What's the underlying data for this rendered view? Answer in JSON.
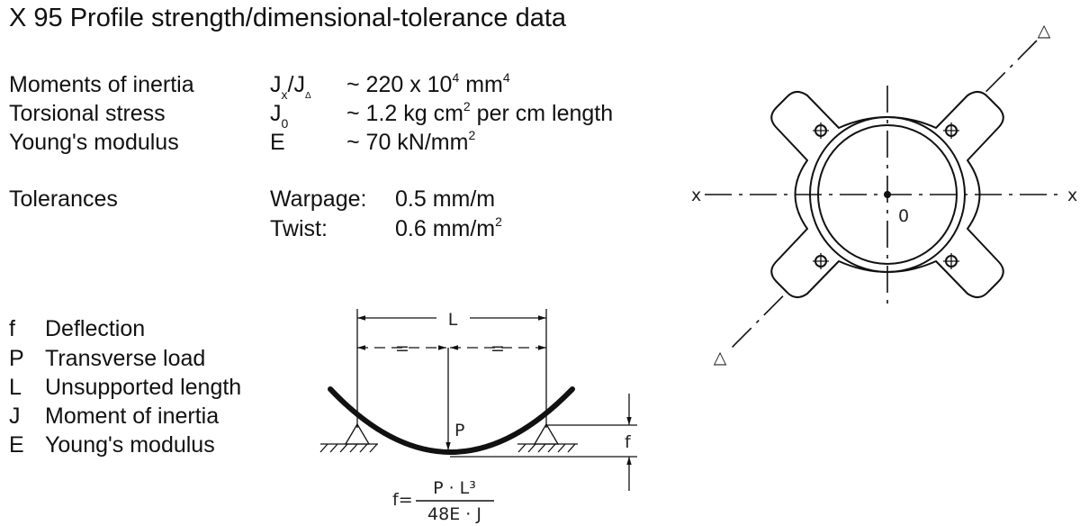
{
  "title": "X 95 Profile strength/dimensional-tolerance data",
  "properties": [
    {
      "label": "Moments of inertia",
      "symbol_main": "J",
      "symbol_sub": "x",
      "symbol_sep": "/J",
      "symbol_sub2": "Δ",
      "value": "~ 220 x 10",
      "value_sup": "4",
      "value_unit": " mm",
      "value_sup2": "4"
    },
    {
      "label": "Torsional stress",
      "symbol_main": "J",
      "symbol_sub": "0",
      "value": "~ 1.2 kg cm",
      "value_sup": "2",
      "value_unit": " per cm length"
    },
    {
      "label": "Young's modulus",
      "symbol_main": "E",
      "value": "~ 70 kN/mm",
      "value_sup": "2"
    }
  ],
  "tolerances": {
    "label": "Tolerances",
    "warpage_label": "Warpage:",
    "warpage_value": "0.5 mm/m",
    "twist_label": "Twist:",
    "twist_value": "0.6 mm/m",
    "twist_sup": "2"
  },
  "legend": [
    {
      "symbol": "f",
      "text": "Deflection"
    },
    {
      "symbol": "P",
      "text": "Transverse load"
    },
    {
      "symbol": "L",
      "text": "Unsupported length"
    },
    {
      "symbol": "J",
      "text": "Moment of inertia"
    },
    {
      "symbol": "E",
      "text": "Young's modulus"
    }
  ],
  "beam_diagram": {
    "length_label": "L",
    "equal_left": "=",
    "equal_right": "=",
    "load_label": "P",
    "deflection_label": "f",
    "formula_lhs": "f=",
    "formula_numerator": "P · L³",
    "formula_denominator": "48E · J"
  },
  "profile_diagram": {
    "axis_x_left": "x",
    "axis_x_right": "x",
    "origin_label": "0",
    "delta_top": "△",
    "delta_bottom": "△"
  }
}
